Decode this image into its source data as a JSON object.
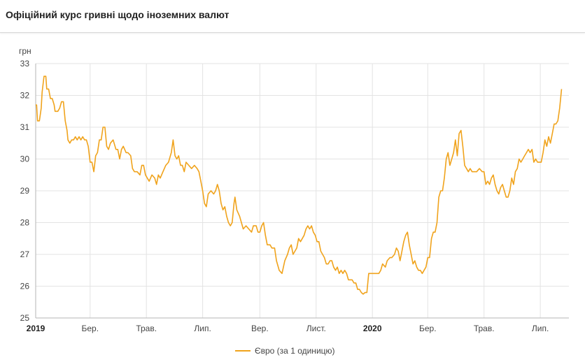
{
  "header": {
    "title": "Офіційний курс гривні щодо іноземних валют"
  },
  "colors": {
    "series": "#f0a31c",
    "grid": "#e3e3e3",
    "axis": "#b5b5b5"
  },
  "chart_data": {
    "type": "line",
    "yunit": "грн",
    "ylim": [
      25,
      33
    ],
    "yticks": [
      "25",
      "26",
      "27",
      "28",
      "29",
      "30",
      "31",
      "32",
      "33"
    ],
    "xrange": [
      "2019-01-01",
      "2020-08-01"
    ],
    "xticks": [
      {
        "date": "2019-01-01",
        "label": "2019",
        "bold": true
      },
      {
        "date": "2019-03-01",
        "label": "Бер.",
        "bold": false
      },
      {
        "date": "2019-05-01",
        "label": "Трав.",
        "bold": false
      },
      {
        "date": "2019-07-01",
        "label": "Лип.",
        "bold": false
      },
      {
        "date": "2019-09-01",
        "label": "Вер.",
        "bold": false
      },
      {
        "date": "2019-11-01",
        "label": "Лист.",
        "bold": false
      },
      {
        "date": "2020-01-01",
        "label": "2020",
        "bold": true
      },
      {
        "date": "2020-03-01",
        "label": "Бер.",
        "bold": false
      },
      {
        "date": "2020-05-01",
        "label": "Трав.",
        "bold": false
      },
      {
        "date": "2020-07-01",
        "label": "Лип.",
        "bold": false
      }
    ],
    "grid": true,
    "legend_position": "bottom",
    "series": [
      {
        "name": "Євро (за 1 одиницю)",
        "points": [
          [
            "2019-01-01",
            31.7
          ],
          [
            "2019-01-02",
            31.7
          ],
          [
            "2019-01-03",
            31.2
          ],
          [
            "2019-01-05",
            31.2
          ],
          [
            "2019-01-07",
            31.6
          ],
          [
            "2019-01-08",
            32.1
          ],
          [
            "2019-01-10",
            32.6
          ],
          [
            "2019-01-12",
            32.6
          ],
          [
            "2019-01-13",
            32.2
          ],
          [
            "2019-01-15",
            32.2
          ],
          [
            "2019-01-17",
            31.9
          ],
          [
            "2019-01-19",
            31.9
          ],
          [
            "2019-01-21",
            31.7
          ],
          [
            "2019-01-22",
            31.5
          ],
          [
            "2019-01-25",
            31.5
          ],
          [
            "2019-01-27",
            31.6
          ],
          [
            "2019-01-29",
            31.8
          ],
          [
            "2019-01-31",
            31.8
          ],
          [
            "2019-02-02",
            31.2
          ],
          [
            "2019-02-04",
            30.9
          ],
          [
            "2019-02-05",
            30.6
          ],
          [
            "2019-02-07",
            30.5
          ],
          [
            "2019-02-09",
            30.6
          ],
          [
            "2019-02-11",
            30.6
          ],
          [
            "2019-02-13",
            30.7
          ],
          [
            "2019-02-15",
            30.6
          ],
          [
            "2019-02-17",
            30.7
          ],
          [
            "2019-02-19",
            30.6
          ],
          [
            "2019-02-21",
            30.7
          ],
          [
            "2019-02-23",
            30.6
          ],
          [
            "2019-02-25",
            30.6
          ],
          [
            "2019-02-27",
            30.4
          ],
          [
            "2019-03-01",
            29.9
          ],
          [
            "2019-03-03",
            29.9
          ],
          [
            "2019-03-05",
            29.6
          ],
          [
            "2019-03-07",
            30.1
          ],
          [
            "2019-03-09",
            30.2
          ],
          [
            "2019-03-11",
            30.6
          ],
          [
            "2019-03-13",
            30.6
          ],
          [
            "2019-03-15",
            31.0
          ],
          [
            "2019-03-17",
            31.0
          ],
          [
            "2019-03-19",
            30.4
          ],
          [
            "2019-03-21",
            30.3
          ],
          [
            "2019-03-23",
            30.5
          ],
          [
            "2019-03-26",
            30.6
          ],
          [
            "2019-03-29",
            30.3
          ],
          [
            "2019-03-31",
            30.3
          ],
          [
            "2019-04-02",
            30.0
          ],
          [
            "2019-04-04",
            30.3
          ],
          [
            "2019-04-06",
            30.4
          ],
          [
            "2019-04-09",
            30.2
          ],
          [
            "2019-04-11",
            30.2
          ],
          [
            "2019-04-14",
            30.1
          ],
          [
            "2019-04-16",
            29.7
          ],
          [
            "2019-04-18",
            29.6
          ],
          [
            "2019-04-21",
            29.6
          ],
          [
            "2019-04-24",
            29.5
          ],
          [
            "2019-04-26",
            29.8
          ],
          [
            "2019-04-28",
            29.8
          ],
          [
            "2019-04-30",
            29.5
          ],
          [
            "2019-05-02",
            29.4
          ],
          [
            "2019-05-04",
            29.3
          ],
          [
            "2019-05-07",
            29.5
          ],
          [
            "2019-05-10",
            29.4
          ],
          [
            "2019-05-12",
            29.2
          ],
          [
            "2019-05-14",
            29.5
          ],
          [
            "2019-05-16",
            29.4
          ],
          [
            "2019-05-19",
            29.6
          ],
          [
            "2019-05-22",
            29.8
          ],
          [
            "2019-05-25",
            29.9
          ],
          [
            "2019-05-28",
            30.2
          ],
          [
            "2019-05-30",
            30.6
          ],
          [
            "2019-06-01",
            30.1
          ],
          [
            "2019-06-03",
            30.0
          ],
          [
            "2019-06-05",
            30.1
          ],
          [
            "2019-06-07",
            29.8
          ],
          [
            "2019-06-09",
            29.8
          ],
          [
            "2019-06-11",
            29.6
          ],
          [
            "2019-06-13",
            29.9
          ],
          [
            "2019-06-16",
            29.8
          ],
          [
            "2019-06-19",
            29.7
          ],
          [
            "2019-06-22",
            29.8
          ],
          [
            "2019-06-25",
            29.7
          ],
          [
            "2019-06-27",
            29.6
          ],
          [
            "2019-06-29",
            29.3
          ],
          [
            "2019-07-01",
            29.0
          ],
          [
            "2019-07-03",
            28.6
          ],
          [
            "2019-07-05",
            28.5
          ],
          [
            "2019-07-07",
            28.9
          ],
          [
            "2019-07-10",
            29.0
          ],
          [
            "2019-07-13",
            28.9
          ],
          [
            "2019-07-15",
            29.0
          ],
          [
            "2019-07-17",
            29.2
          ],
          [
            "2019-07-19",
            29.0
          ],
          [
            "2019-07-21",
            28.6
          ],
          [
            "2019-07-23",
            28.4
          ],
          [
            "2019-07-25",
            28.5
          ],
          [
            "2019-07-27",
            28.2
          ],
          [
            "2019-07-29",
            28.0
          ],
          [
            "2019-07-31",
            27.9
          ],
          [
            "2019-08-02",
            28.0
          ],
          [
            "2019-08-04",
            28.6
          ],
          [
            "2019-08-05",
            28.8
          ],
          [
            "2019-08-07",
            28.4
          ],
          [
            "2019-08-10",
            28.2
          ],
          [
            "2019-08-12",
            28.0
          ],
          [
            "2019-08-14",
            27.8
          ],
          [
            "2019-08-17",
            27.9
          ],
          [
            "2019-08-20",
            27.8
          ],
          [
            "2019-08-23",
            27.7
          ],
          [
            "2019-08-25",
            27.9
          ],
          [
            "2019-08-28",
            27.9
          ],
          [
            "2019-08-30",
            27.7
          ],
          [
            "2019-09-01",
            27.7
          ],
          [
            "2019-09-03",
            27.9
          ],
          [
            "2019-09-05",
            28.0
          ],
          [
            "2019-09-07",
            27.6
          ],
          [
            "2019-09-09",
            27.3
          ],
          [
            "2019-09-12",
            27.3
          ],
          [
            "2019-09-14",
            27.2
          ],
          [
            "2019-09-17",
            27.2
          ],
          [
            "2019-09-19",
            26.8
          ],
          [
            "2019-09-22",
            26.5
          ],
          [
            "2019-09-25",
            26.4
          ],
          [
            "2019-09-28",
            26.8
          ],
          [
            "2019-10-01",
            27.0
          ],
          [
            "2019-10-03",
            27.2
          ],
          [
            "2019-10-05",
            27.3
          ],
          [
            "2019-10-07",
            27.0
          ],
          [
            "2019-10-09",
            27.1
          ],
          [
            "2019-10-11",
            27.2
          ],
          [
            "2019-10-13",
            27.5
          ],
          [
            "2019-10-15",
            27.4
          ],
          [
            "2019-10-17",
            27.5
          ],
          [
            "2019-10-19",
            27.6
          ],
          [
            "2019-10-21",
            27.8
          ],
          [
            "2019-10-23",
            27.9
          ],
          [
            "2019-10-25",
            27.8
          ],
          [
            "2019-10-27",
            27.9
          ],
          [
            "2019-10-29",
            27.7
          ],
          [
            "2019-10-31",
            27.6
          ],
          [
            "2019-11-02",
            27.4
          ],
          [
            "2019-11-04",
            27.4
          ],
          [
            "2019-11-06",
            27.1
          ],
          [
            "2019-11-08",
            27.0
          ],
          [
            "2019-11-10",
            26.9
          ],
          [
            "2019-11-12",
            26.7
          ],
          [
            "2019-11-14",
            26.7
          ],
          [
            "2019-11-16",
            26.8
          ],
          [
            "2019-11-18",
            26.8
          ],
          [
            "2019-11-20",
            26.6
          ],
          [
            "2019-11-22",
            26.5
          ],
          [
            "2019-11-24",
            26.6
          ],
          [
            "2019-11-26",
            26.4
          ],
          [
            "2019-11-28",
            26.5
          ],
          [
            "2019-11-30",
            26.4
          ],
          [
            "2019-12-02",
            26.5
          ],
          [
            "2019-12-04",
            26.4
          ],
          [
            "2019-12-06",
            26.2
          ],
          [
            "2019-12-08",
            26.2
          ],
          [
            "2019-12-10",
            26.2
          ],
          [
            "2019-12-12",
            26.1
          ],
          [
            "2019-12-14",
            26.1
          ],
          [
            "2019-12-16",
            25.9
          ],
          [
            "2019-12-18",
            25.9
          ],
          [
            "2019-12-20",
            25.8
          ],
          [
            "2019-12-22",
            25.75
          ],
          [
            "2019-12-24",
            25.8
          ],
          [
            "2019-12-26",
            25.8
          ],
          [
            "2019-12-28",
            26.4
          ],
          [
            "2019-12-31",
            26.4
          ],
          [
            "2020-01-03",
            26.4
          ],
          [
            "2020-01-06",
            26.4
          ],
          [
            "2020-01-08",
            26.4
          ],
          [
            "2020-01-10",
            26.5
          ],
          [
            "2020-01-12",
            26.7
          ],
          [
            "2020-01-15",
            26.6
          ],
          [
            "2020-01-17",
            26.8
          ],
          [
            "2020-01-20",
            26.9
          ],
          [
            "2020-01-22",
            26.9
          ],
          [
            "2020-01-25",
            27.0
          ],
          [
            "2020-01-27",
            27.2
          ],
          [
            "2020-01-29",
            27.1
          ],
          [
            "2020-01-31",
            26.8
          ],
          [
            "2020-02-02",
            27.1
          ],
          [
            "2020-02-04",
            27.4
          ],
          [
            "2020-02-06",
            27.6
          ],
          [
            "2020-02-08",
            27.7
          ],
          [
            "2020-02-10",
            27.3
          ],
          [
            "2020-02-12",
            27.0
          ],
          [
            "2020-02-14",
            26.7
          ],
          [
            "2020-02-16",
            26.8
          ],
          [
            "2020-02-18",
            26.6
          ],
          [
            "2020-02-20",
            26.5
          ],
          [
            "2020-02-22",
            26.5
          ],
          [
            "2020-02-24",
            26.4
          ],
          [
            "2020-02-26",
            26.5
          ],
          [
            "2020-02-28",
            26.6
          ],
          [
            "2020-03-01",
            26.9
          ],
          [
            "2020-03-03",
            26.9
          ],
          [
            "2020-03-05",
            27.5
          ],
          [
            "2020-03-07",
            27.7
          ],
          [
            "2020-03-09",
            27.7
          ],
          [
            "2020-03-11",
            28.0
          ],
          [
            "2020-03-13",
            28.8
          ],
          [
            "2020-03-15",
            29.0
          ],
          [
            "2020-03-17",
            29.0
          ],
          [
            "2020-03-19",
            29.4
          ],
          [
            "2020-03-21",
            30.0
          ],
          [
            "2020-03-23",
            30.2
          ],
          [
            "2020-03-25",
            29.8
          ],
          [
            "2020-03-27",
            30.0
          ],
          [
            "2020-03-29",
            30.2
          ],
          [
            "2020-03-31",
            30.6
          ],
          [
            "2020-04-02",
            30.1
          ],
          [
            "2020-04-04",
            30.8
          ],
          [
            "2020-04-06",
            30.9
          ],
          [
            "2020-04-08",
            30.4
          ],
          [
            "2020-04-10",
            29.8
          ],
          [
            "2020-04-12",
            29.7
          ],
          [
            "2020-04-14",
            29.6
          ],
          [
            "2020-04-16",
            29.7
          ],
          [
            "2020-04-18",
            29.6
          ],
          [
            "2020-04-20",
            29.6
          ],
          [
            "2020-04-23",
            29.6
          ],
          [
            "2020-04-26",
            29.7
          ],
          [
            "2020-04-29",
            29.6
          ],
          [
            "2020-05-01",
            29.6
          ],
          [
            "2020-05-03",
            29.2
          ],
          [
            "2020-05-05",
            29.3
          ],
          [
            "2020-05-07",
            29.2
          ],
          [
            "2020-05-09",
            29.4
          ],
          [
            "2020-05-11",
            29.5
          ],
          [
            "2020-05-13",
            29.2
          ],
          [
            "2020-05-15",
            29.0
          ],
          [
            "2020-05-17",
            28.9
          ],
          [
            "2020-05-19",
            29.1
          ],
          [
            "2020-05-21",
            29.2
          ],
          [
            "2020-05-23",
            29.0
          ],
          [
            "2020-05-25",
            28.8
          ],
          [
            "2020-05-27",
            28.8
          ],
          [
            "2020-05-29",
            29.0
          ],
          [
            "2020-05-31",
            29.4
          ],
          [
            "2020-06-02",
            29.2
          ],
          [
            "2020-06-04",
            29.6
          ],
          [
            "2020-06-06",
            29.7
          ],
          [
            "2020-06-08",
            30.0
          ],
          [
            "2020-06-10",
            29.9
          ],
          [
            "2020-06-12",
            30.0
          ],
          [
            "2020-06-14",
            30.1
          ],
          [
            "2020-06-16",
            30.2
          ],
          [
            "2020-06-18",
            30.3
          ],
          [
            "2020-06-20",
            30.2
          ],
          [
            "2020-06-22",
            30.3
          ],
          [
            "2020-06-24",
            29.9
          ],
          [
            "2020-06-26",
            30.0
          ],
          [
            "2020-06-28",
            29.9
          ],
          [
            "2020-06-30",
            29.9
          ],
          [
            "2020-07-02",
            29.9
          ],
          [
            "2020-07-04",
            30.2
          ],
          [
            "2020-07-06",
            30.6
          ],
          [
            "2020-07-08",
            30.4
          ],
          [
            "2020-07-10",
            30.7
          ],
          [
            "2020-07-12",
            30.5
          ],
          [
            "2020-07-14",
            30.8
          ],
          [
            "2020-07-16",
            31.1
          ],
          [
            "2020-07-18",
            31.1
          ],
          [
            "2020-07-20",
            31.2
          ],
          [
            "2020-07-22",
            31.6
          ],
          [
            "2020-07-24",
            32.2
          ]
        ]
      }
    ]
  }
}
